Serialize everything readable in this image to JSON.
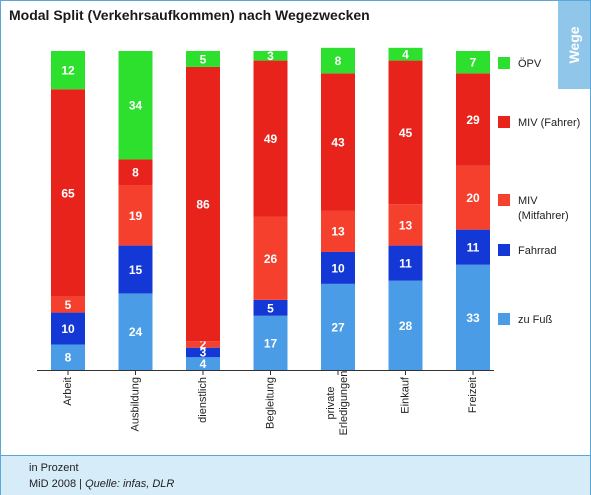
{
  "title": "Modal Split (Verkehrsaufkommen) nach Wegezwecken",
  "tag": "Wege",
  "footer": {
    "unit": "in Prozent",
    "source_prefix": "MiD 2008 | ",
    "source": "Quelle: infas, DLR"
  },
  "chart_data": {
    "type": "bar",
    "stacked": true,
    "categories": [
      "Arbeit",
      "Ausbildung",
      "dienstlich",
      "Begleitung",
      "private Erledigungen",
      "Einkauf",
      "Freizeit"
    ],
    "series": [
      {
        "name": "zu Fuß",
        "color": "#4a9ce6",
        "values": [
          8,
          24,
          4,
          17,
          27,
          28,
          33
        ]
      },
      {
        "name": "Fahrrad",
        "color": "#1438d6",
        "values": [
          10,
          15,
          3,
          5,
          10,
          11,
          11
        ]
      },
      {
        "name": "MIV (Mitfahrer)",
        "color": "#f5402e",
        "values": [
          5,
          19,
          2,
          26,
          13,
          13,
          20
        ]
      },
      {
        "name": "MIV (Fahrer)",
        "color": "#e8231c",
        "values": [
          65,
          8,
          86,
          49,
          43,
          45,
          29
        ]
      },
      {
        "name": "ÖPV",
        "color": "#2ee02e",
        "values": [
          12,
          34,
          5,
          3,
          8,
          4,
          7
        ]
      }
    ],
    "ylim": [
      0,
      100
    ],
    "legend": "right"
  }
}
